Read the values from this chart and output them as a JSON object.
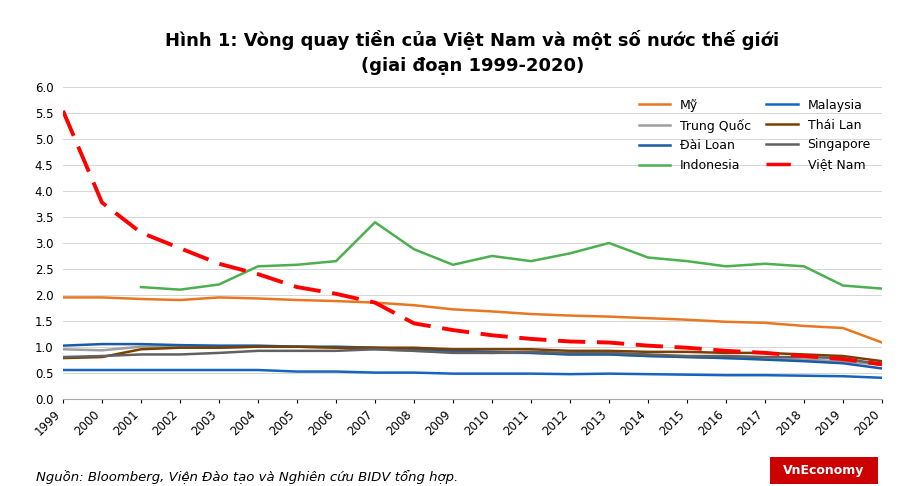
{
  "title_line1": "Hình 1: Vòng quay tiền của Việt Nam và một số nước thế giới",
  "title_line2": "(giai đoạn 1999-2020)",
  "source_text": "Nguồn: Bloomberg, Viện Đào tạo và Nghiên cứu BIDV tổng hợp.",
  "years": [
    1999,
    2000,
    2001,
    2002,
    2003,
    2004,
    2005,
    2006,
    2007,
    2008,
    2009,
    2010,
    2011,
    2012,
    2013,
    2014,
    2015,
    2016,
    2017,
    2018,
    2019,
    2020
  ],
  "series": {
    "Mỹ": [
      1.95,
      1.95,
      1.92,
      1.9,
      1.95,
      1.93,
      1.9,
      1.88,
      1.85,
      1.8,
      1.72,
      1.68,
      1.63,
      1.6,
      1.58,
      1.55,
      1.52,
      1.48,
      1.46,
      1.4,
      1.36,
      1.08
    ],
    "Trung Quốc": [
      0.95,
      0.93,
      1.0,
      1.0,
      0.98,
      1.0,
      1.0,
      0.98,
      0.95,
      0.92,
      0.9,
      0.88,
      0.88,
      0.85,
      0.85,
      0.82,
      0.8,
      0.78,
      0.78,
      0.75,
      0.72,
      0.65
    ],
    "Đài Loan": [
      1.02,
      1.05,
      1.05,
      1.03,
      1.02,
      1.02,
      1.0,
      1.0,
      0.98,
      0.95,
      0.92,
      0.9,
      0.88,
      0.85,
      0.85,
      0.82,
      0.8,
      0.78,
      0.75,
      0.72,
      0.68,
      0.58
    ],
    "Indonesia": [
      null,
      null,
      2.15,
      2.1,
      2.2,
      2.55,
      2.58,
      2.65,
      3.4,
      2.88,
      2.58,
      2.75,
      2.65,
      2.8,
      3.0,
      2.72,
      2.65,
      2.55,
      2.6,
      2.55,
      2.18,
      2.12
    ],
    "Malaysia": [
      0.55,
      0.55,
      0.55,
      0.55,
      0.55,
      0.55,
      0.52,
      0.52,
      0.5,
      0.5,
      0.48,
      0.48,
      0.48,
      0.47,
      0.48,
      0.47,
      0.46,
      0.45,
      0.45,
      0.44,
      0.43,
      0.4
    ],
    "Thái Lan": [
      0.78,
      0.8,
      0.95,
      0.98,
      0.98,
      1.0,
      1.0,
      0.98,
      0.98,
      0.98,
      0.95,
      0.95,
      0.95,
      0.92,
      0.92,
      0.9,
      0.9,
      0.88,
      0.88,
      0.85,
      0.82,
      0.72
    ],
    "Singapore": [
      0.8,
      0.82,
      0.85,
      0.85,
      0.88,
      0.92,
      0.92,
      0.92,
      0.95,
      0.92,
      0.88,
      0.88,
      0.9,
      0.88,
      0.88,
      0.85,
      0.82,
      0.82,
      0.8,
      0.8,
      0.78,
      0.65
    ],
    "Việt Nam": [
      5.55,
      3.78,
      3.2,
      2.9,
      2.6,
      2.4,
      2.15,
      2.02,
      1.85,
      1.45,
      1.32,
      1.22,
      1.15,
      1.1,
      1.08,
      1.02,
      0.98,
      0.92,
      0.88,
      0.82,
      0.76,
      0.66
    ]
  },
  "colors": {
    "Mỹ": "#E87722",
    "Trung Quốc": "#9E9E9E",
    "Đài Loan": "#1A5BA8",
    "Indonesia": "#4CAF50",
    "Malaysia": "#1565C0",
    "Thái Lan": "#7B3F00",
    "Singapore": "#616161",
    "Việt Nam": "#FF0000"
  },
  "legend_order": [
    "Mỹ",
    "Trung Quốc",
    "Đài Loan",
    "Indonesia",
    "Malaysia",
    "Thái Lan",
    "Singapore",
    "Việt Nam"
  ],
  "ylim": [
    0,
    6
  ],
  "yticks": [
    0,
    0.5,
    1.0,
    1.5,
    2.0,
    2.5,
    3.0,
    3.5,
    4.0,
    4.5,
    5.0,
    5.5,
    6.0
  ],
  "background_color": "#FFFFFF",
  "title_fontsize": 13,
  "axis_fontsize": 8.5,
  "legend_fontsize": 9,
  "source_fontsize": 9.5
}
